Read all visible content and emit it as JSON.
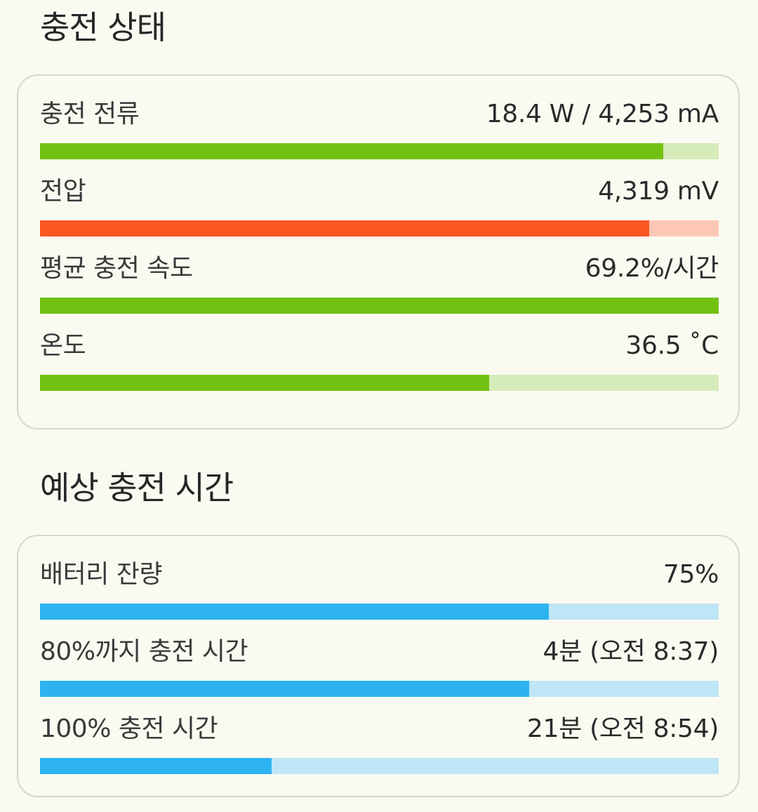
{
  "colors": {
    "green": "#72c112",
    "green_track": "#d5ecba",
    "orange": "#fb5722",
    "orange_track": "#fcc8b3",
    "blue": "#2db3f0",
    "blue_track": "#bfe6f6"
  },
  "status_section": {
    "title": "충전 상태",
    "rows": [
      {
        "label": "충전 전류",
        "value": "18.4 W / 4,253 mA",
        "progress": 0.918,
        "color": "green"
      },
      {
        "label": "전압",
        "value": "4,319 mV",
        "progress": 0.898,
        "color": "orange"
      },
      {
        "label": "평균 충전 속도",
        "value": "69.2%/시간",
        "progress": 1.0,
        "color": "green"
      },
      {
        "label": "온도",
        "value": "36.5 ˚C",
        "progress": 0.662,
        "color": "green"
      }
    ]
  },
  "estimate_section": {
    "title": "예상 충전 시간",
    "rows": [
      {
        "label": "배터리 잔량",
        "value": "75%",
        "progress": 0.75,
        "color": "blue"
      },
      {
        "label": "80%까지 충전 시간",
        "value": "4분 (오전 8:37)",
        "progress": 0.721,
        "color": "blue"
      },
      {
        "label": "100% 충전 시간",
        "value": "21분 (오전 8:54)",
        "progress": 0.341,
        "color": "blue"
      }
    ]
  }
}
